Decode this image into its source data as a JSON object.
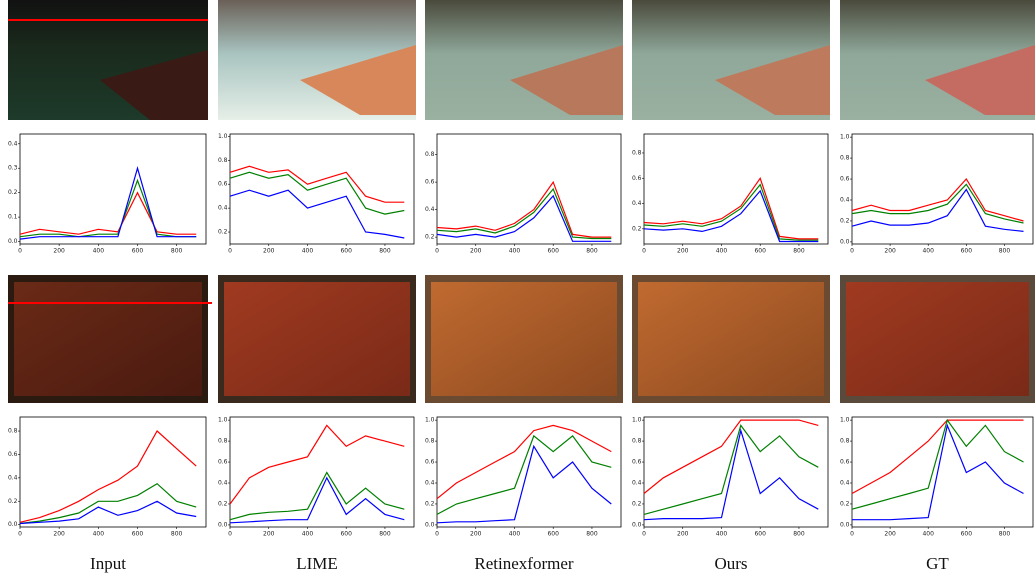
{
  "column_labels": [
    "Input",
    "LIME",
    "Retinexformer",
    "Ours",
    "GT"
  ],
  "chart_data": [
    {
      "type": "line",
      "x": [
        0,
        100,
        200,
        300,
        400,
        500,
        600,
        700,
        800,
        900
      ],
      "xlim": [
        0,
        950
      ],
      "xticks": [
        0,
        200,
        400,
        600,
        800
      ],
      "ylim": [
        -0.01,
        0.44
      ],
      "yticks": [
        {
          "value": 0,
          "label": "0.0"
        },
        0.1,
        0.2,
        0.3,
        0.4
      ],
      "series": [
        {
          "color": "#ff0000",
          "values": [
            0.03,
            0.05,
            0.04,
            0.03,
            0.05,
            0.04,
            0.2,
            0.04,
            0.03,
            0.03
          ]
        },
        {
          "color": "#008000",
          "values": [
            0.02,
            0.03,
            0.03,
            0.02,
            0.03,
            0.03,
            0.25,
            0.03,
            0.02,
            0.02
          ]
        },
        {
          "color": "#0000ff",
          "values": [
            0.01,
            0.02,
            0.02,
            0.02,
            0.02,
            0.02,
            0.3,
            0.02,
            0.02,
            0.02
          ]
        }
      ]
    },
    {
      "type": "line",
      "x": [
        0,
        100,
        200,
        300,
        400,
        500,
        600,
        700,
        800,
        900
      ],
      "xlim": [
        0,
        950
      ],
      "xticks": [
        0,
        200,
        400,
        600,
        800
      ],
      "ylim": [
        0.1,
        1.02
      ],
      "yticks": [
        0.2,
        0.4,
        0.6,
        0.8,
        {
          "value": 1,
          "label": "1.0"
        }
      ],
      "series": [
        {
          "color": "#ff0000",
          "values": [
            0.7,
            0.75,
            0.7,
            0.72,
            0.6,
            0.65,
            0.7,
            0.5,
            0.45,
            0.45
          ]
        },
        {
          "color": "#008000",
          "values": [
            0.65,
            0.7,
            0.65,
            0.68,
            0.55,
            0.6,
            0.65,
            0.4,
            0.35,
            0.38
          ]
        },
        {
          "color": "#0000ff",
          "values": [
            0.5,
            0.55,
            0.5,
            0.55,
            0.4,
            0.45,
            0.5,
            0.2,
            0.18,
            0.15
          ]
        }
      ]
    },
    {
      "type": "line",
      "x": [
        0,
        100,
        200,
        300,
        400,
        500,
        600,
        700,
        800,
        900
      ],
      "xlim": [
        0,
        950
      ],
      "xticks": [
        0,
        200,
        400,
        600,
        800
      ],
      "ylim": [
        0.15,
        0.95
      ],
      "yticks": [
        0.2,
        0.4,
        0.6,
        0.8
      ],
      "series": [
        {
          "color": "#ff0000",
          "values": [
            0.27,
            0.26,
            0.28,
            0.25,
            0.3,
            0.4,
            0.6,
            0.22,
            0.2,
            0.2
          ]
        },
        {
          "color": "#008000",
          "values": [
            0.25,
            0.24,
            0.26,
            0.23,
            0.28,
            0.38,
            0.55,
            0.2,
            0.19,
            0.19
          ]
        },
        {
          "color": "#0000ff",
          "values": [
            0.22,
            0.2,
            0.22,
            0.2,
            0.24,
            0.34,
            0.5,
            0.17,
            0.17,
            0.17
          ]
        }
      ]
    },
    {
      "type": "line",
      "x": [
        0,
        100,
        200,
        300,
        400,
        500,
        600,
        700,
        800,
        900
      ],
      "xlim": [
        0,
        950
      ],
      "xticks": [
        0,
        200,
        400,
        600,
        800
      ],
      "ylim": [
        0.08,
        0.95
      ],
      "yticks": [
        0.2,
        0.4,
        0.6,
        0.8
      ],
      "series": [
        {
          "color": "#ff0000",
          "values": [
            0.25,
            0.24,
            0.26,
            0.24,
            0.28,
            0.38,
            0.6,
            0.14,
            0.12,
            0.12
          ]
        },
        {
          "color": "#008000",
          "values": [
            0.23,
            0.22,
            0.24,
            0.22,
            0.26,
            0.36,
            0.55,
            0.12,
            0.11,
            0.11
          ]
        },
        {
          "color": "#0000ff",
          "values": [
            0.2,
            0.19,
            0.2,
            0.18,
            0.22,
            0.32,
            0.5,
            0.1,
            0.1,
            0.1
          ]
        }
      ]
    },
    {
      "type": "line",
      "x": [
        0,
        100,
        200,
        300,
        400,
        500,
        600,
        700,
        800,
        900
      ],
      "xlim": [
        0,
        950
      ],
      "xticks": [
        0,
        200,
        400,
        600,
        800
      ],
      "ylim": [
        -0.02,
        1.03
      ],
      "yticks": [
        {
          "value": 0,
          "label": "0.0"
        },
        0.2,
        0.4,
        0.6,
        0.8,
        {
          "value": 1,
          "label": "1.0"
        }
      ],
      "series": [
        {
          "color": "#ff0000",
          "values": [
            0.3,
            0.35,
            0.3,
            0.3,
            0.35,
            0.4,
            0.6,
            0.3,
            0.25,
            0.2
          ]
        },
        {
          "color": "#008000",
          "values": [
            0.27,
            0.3,
            0.27,
            0.27,
            0.3,
            0.36,
            0.55,
            0.27,
            0.22,
            0.18
          ]
        },
        {
          "color": "#0000ff",
          "values": [
            0.15,
            0.2,
            0.16,
            0.16,
            0.18,
            0.25,
            0.5,
            0.15,
            0.12,
            0.1
          ]
        }
      ]
    },
    {
      "type": "line",
      "x": [
        0,
        100,
        200,
        300,
        400,
        500,
        600,
        700,
        800,
        900
      ],
      "xlim": [
        0,
        950
      ],
      "xticks": [
        0,
        200,
        400,
        600,
        800
      ],
      "ylim": [
        -0.02,
        0.92
      ],
      "yticks": [
        {
          "value": 0,
          "label": "0.0"
        },
        0.2,
        0.4,
        0.6,
        0.8
      ],
      "series": [
        {
          "color": "#ff0000",
          "values": [
            0.02,
            0.06,
            0.12,
            0.2,
            0.3,
            0.38,
            0.5,
            0.8,
            0.65,
            0.5
          ]
        },
        {
          "color": "#008000",
          "values": [
            0.01,
            0.03,
            0.06,
            0.1,
            0.2,
            0.2,
            0.25,
            0.35,
            0.2,
            0.15
          ]
        },
        {
          "color": "#0000ff",
          "values": [
            0.01,
            0.02,
            0.03,
            0.05,
            0.15,
            0.08,
            0.12,
            0.2,
            0.1,
            0.07
          ]
        }
      ]
    },
    {
      "type": "line",
      "x": [
        0,
        100,
        200,
        300,
        400,
        500,
        600,
        700,
        800,
        900
      ],
      "xlim": [
        0,
        950
      ],
      "xticks": [
        0,
        200,
        400,
        600,
        800
      ],
      "ylim": [
        -0.02,
        1.03
      ],
      "yticks": [
        {
          "value": 0,
          "label": "0.0"
        },
        0.2,
        0.4,
        0.6,
        0.8,
        {
          "value": 1,
          "label": "1.0"
        }
      ],
      "series": [
        {
          "color": "#ff0000",
          "values": [
            0.2,
            0.45,
            0.55,
            0.6,
            0.65,
            0.95,
            0.75,
            0.85,
            0.8,
            0.75
          ]
        },
        {
          "color": "#008000",
          "values": [
            0.05,
            0.1,
            0.12,
            0.13,
            0.15,
            0.5,
            0.2,
            0.35,
            0.2,
            0.15
          ]
        },
        {
          "color": "#0000ff",
          "values": [
            0.02,
            0.03,
            0.04,
            0.05,
            0.05,
            0.45,
            0.1,
            0.25,
            0.1,
            0.05
          ]
        }
      ]
    },
    {
      "type": "line",
      "x": [
        0,
        100,
        200,
        300,
        400,
        500,
        600,
        700,
        800,
        900
      ],
      "xlim": [
        0,
        950
      ],
      "xticks": [
        0,
        200,
        400,
        600,
        800
      ],
      "ylim": [
        -0.02,
        1.03
      ],
      "yticks": [
        {
          "value": 0,
          "label": "0.0"
        },
        0.2,
        0.4,
        0.6,
        0.8,
        {
          "value": 1,
          "label": "1.0"
        }
      ],
      "series": [
        {
          "color": "#ff0000",
          "values": [
            0.25,
            0.4,
            0.5,
            0.6,
            0.7,
            0.9,
            0.95,
            0.9,
            0.8,
            0.7
          ]
        },
        {
          "color": "#008000",
          "values": [
            0.1,
            0.2,
            0.25,
            0.3,
            0.35,
            0.85,
            0.7,
            0.85,
            0.6,
            0.55
          ]
        },
        {
          "color": "#0000ff",
          "values": [
            0.02,
            0.03,
            0.03,
            0.04,
            0.05,
            0.75,
            0.45,
            0.6,
            0.35,
            0.2
          ]
        }
      ]
    },
    {
      "type": "line",
      "x": [
        0,
        100,
        200,
        300,
        400,
        500,
        600,
        700,
        800,
        900
      ],
      "xlim": [
        0,
        950
      ],
      "xticks": [
        0,
        200,
        400,
        600,
        800
      ],
      "ylim": [
        -0.02,
        1.03
      ],
      "yticks": [
        {
          "value": 0,
          "label": "0.0"
        },
        0.2,
        0.4,
        0.6,
        0.8,
        {
          "value": 1,
          "label": "1.0"
        }
      ],
      "series": [
        {
          "color": "#ff0000",
          "values": [
            0.3,
            0.45,
            0.55,
            0.65,
            0.75,
            1.0,
            1.0,
            1.0,
            1.0,
            0.95
          ]
        },
        {
          "color": "#008000",
          "values": [
            0.1,
            0.15,
            0.2,
            0.25,
            0.3,
            0.95,
            0.7,
            0.85,
            0.65,
            0.55
          ]
        },
        {
          "color": "#0000ff",
          "values": [
            0.05,
            0.06,
            0.06,
            0.06,
            0.07,
            0.9,
            0.3,
            0.45,
            0.25,
            0.15
          ]
        }
      ]
    },
    {
      "type": "line",
      "x": [
        0,
        100,
        200,
        300,
        400,
        500,
        600,
        700,
        800,
        900
      ],
      "xlim": [
        0,
        950
      ],
      "xticks": [
        0,
        200,
        400,
        600,
        800
      ],
      "ylim": [
        -0.02,
        1.03
      ],
      "yticks": [
        {
          "value": 0,
          "label": "0.0"
        },
        0.2,
        0.4,
        0.6,
        0.8,
        {
          "value": 1,
          "label": "1.0"
        }
      ],
      "series": [
        {
          "color": "#ff0000",
          "values": [
            0.3,
            0.4,
            0.5,
            0.65,
            0.8,
            1.0,
            1.0,
            1.0,
            1.0,
            1.0
          ]
        },
        {
          "color": "#008000",
          "values": [
            0.15,
            0.2,
            0.25,
            0.3,
            0.35,
            1.0,
            0.75,
            0.95,
            0.7,
            0.6
          ]
        },
        {
          "color": "#0000ff",
          "values": [
            0.05,
            0.05,
            0.05,
            0.06,
            0.07,
            0.95,
            0.5,
            0.6,
            0.4,
            0.3
          ]
        }
      ]
    }
  ]
}
